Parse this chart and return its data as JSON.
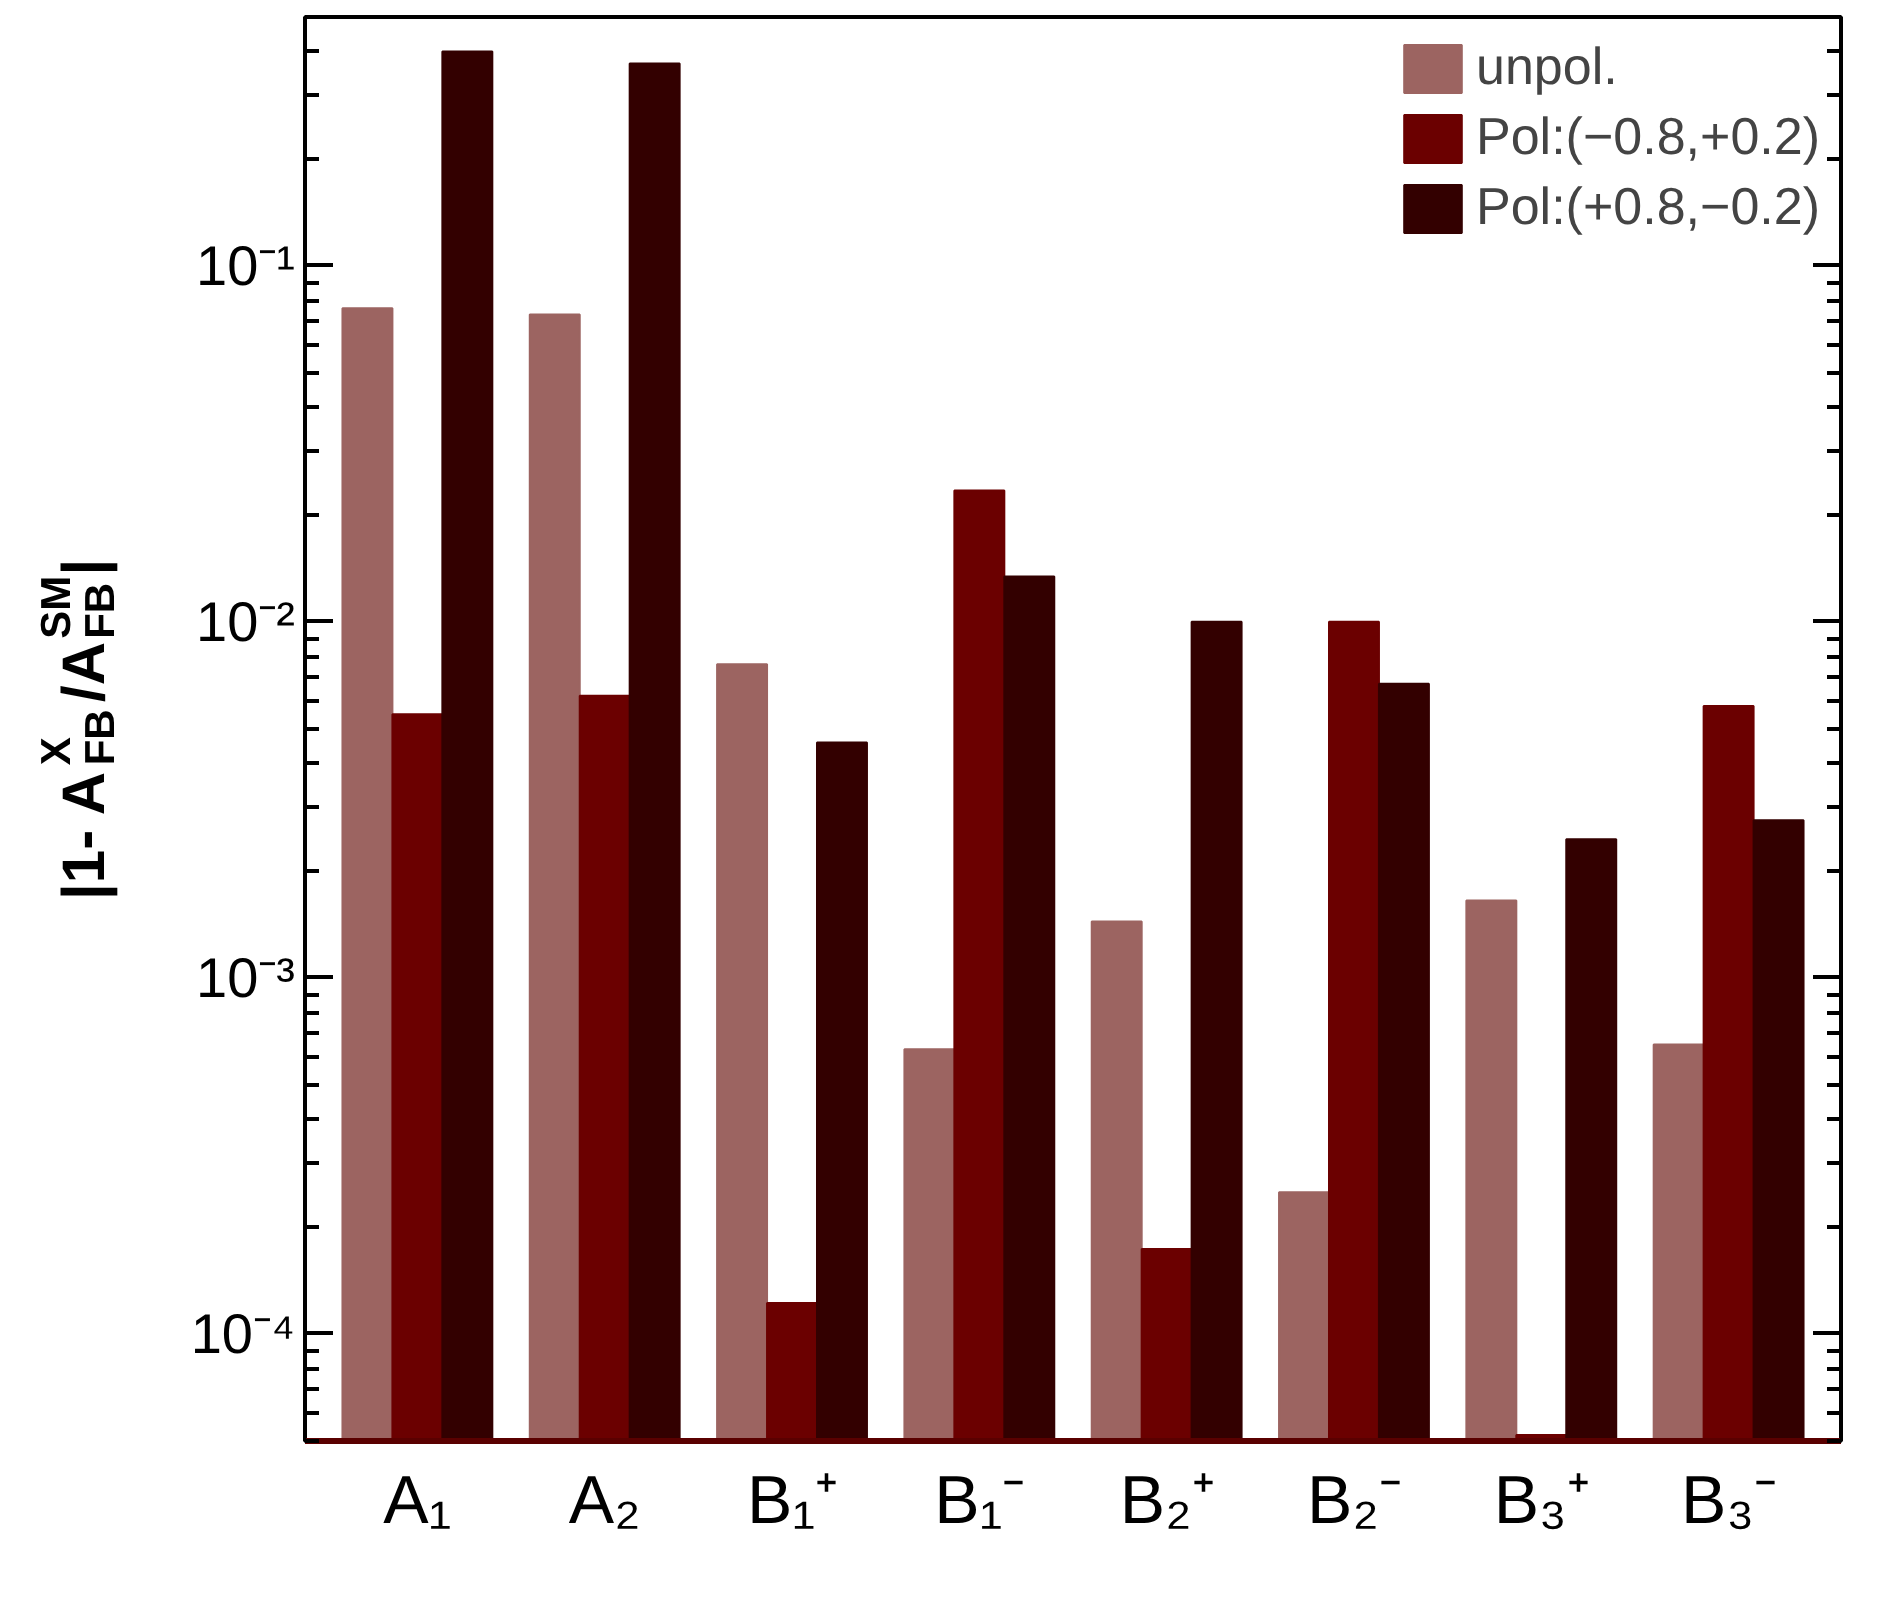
{
  "chart_data": {
    "type": "bar",
    "ylabel": "|1- A$^{X}$$_{FB}$/A$^{SM}$$_{FB}$|",
    "categories": [
      "A₁",
      "A₂",
      "B₁⁺",
      "B₁⁻",
      "B₂⁺",
      "B₂⁻",
      "B₃⁺",
      "B₃⁻"
    ],
    "series": [
      {
        "name": "unpol.",
        "color": "#9c6461",
        "values": [
          0.076,
          0.073,
          0.0076,
          0.00063,
          0.00144,
          0.00025,
          0.00165,
          0.00065
        ]
      },
      {
        "name": "Pol:(−0.8,+0.2)",
        "color": "#6b0000",
        "values": [
          0.0055,
          0.0062,
          0.000122,
          0.0234,
          0.000173,
          0.01,
          5.2e-05,
          0.0058
        ]
      },
      {
        "name": "Pol:(+0.8,−0.2)",
        "color": "#330000",
        "values": [
          0.4,
          0.37,
          0.00458,
          0.0134,
          0.01,
          0.0067,
          0.00245,
          0.00277
        ]
      }
    ],
    "log": "y",
    "ylim": [
      5e-05,
      0.5
    ],
    "yticks": [
      {
        "value": 5e-05,
        "label": null
      },
      {
        "value": 6e-05,
        "label": null
      },
      {
        "value": 7e-05,
        "label": null
      },
      {
        "value": 8e-05,
        "label": null
      },
      {
        "value": 9e-05,
        "label": null
      },
      {
        "value": 0.0001,
        "label": "10⁻⁴"
      },
      {
        "value": 0.0002,
        "label": null
      },
      {
        "value": 0.0003,
        "label": null
      },
      {
        "value": 0.0004,
        "label": null
      },
      {
        "value": 0.0005,
        "label": null
      },
      {
        "value": 0.0006,
        "label": null
      },
      {
        "value": 0.0007,
        "label": null
      },
      {
        "value": 0.0008,
        "label": null
      },
      {
        "value": 0.0009,
        "label": null
      },
      {
        "value": 0.001,
        "label": "10⁻³"
      },
      {
        "value": 0.002,
        "label": null
      },
      {
        "value": 0.003,
        "label": null
      },
      {
        "value": 0.004,
        "label": null
      },
      {
        "value": 0.005,
        "label": null
      },
      {
        "value": 0.006,
        "label": null
      },
      {
        "value": 0.007,
        "label": null
      },
      {
        "value": 0.008,
        "label": null
      },
      {
        "value": 0.009,
        "label": null
      },
      {
        "value": 0.01,
        "label": "10⁻²"
      },
      {
        "value": 0.02,
        "label": null
      },
      {
        "value": 0.03,
        "label": null
      },
      {
        "value": 0.04,
        "label": null
      },
      {
        "value": 0.05,
        "label": null
      },
      {
        "value": 0.06,
        "label": null
      },
      {
        "value": 0.07,
        "label": null
      },
      {
        "value": 0.08,
        "label": null
      },
      {
        "value": 0.09,
        "label": null
      },
      {
        "value": 0.1,
        "label": "10⁻¹"
      },
      {
        "value": 0.2,
        "label": null
      },
      {
        "value": 0.3,
        "label": null
      },
      {
        "value": 0.4,
        "label": null
      },
      {
        "value": 0.5,
        "label": null
      }
    ],
    "grid": false,
    "legend": "top right"
  }
}
